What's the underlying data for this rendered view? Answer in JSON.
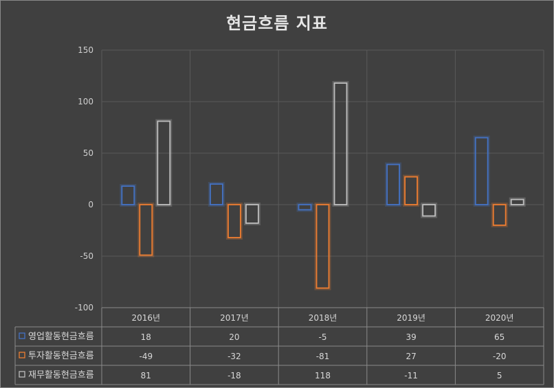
{
  "chart_data": {
    "type": "bar",
    "title": "현금흐름 지표",
    "categories": [
      "2016년",
      "2017년",
      "2018년",
      "2019년",
      "2020년"
    ],
    "series": [
      {
        "name": "영업활동현금흐름",
        "values": [
          18,
          20,
          -5,
          39,
          65
        ],
        "color": "#4472c4"
      },
      {
        "name": "투자활동현금흐름",
        "values": [
          -49,
          -32,
          -81,
          27,
          -20
        ],
        "color": "#ed7d31"
      },
      {
        "name": "재무활동현금흐름",
        "values": [
          81,
          -18,
          118,
          -11,
          5
        ],
        "color": "#bdbdbd"
      }
    ],
    "ylim": [
      -100,
      150
    ],
    "yticks": [
      "150",
      "100",
      "50",
      "0",
      "-50",
      "-100"
    ],
    "ytick_values": [
      150,
      100,
      50,
      0,
      -50,
      -100
    ],
    "grid": true,
    "data_table": true
  }
}
